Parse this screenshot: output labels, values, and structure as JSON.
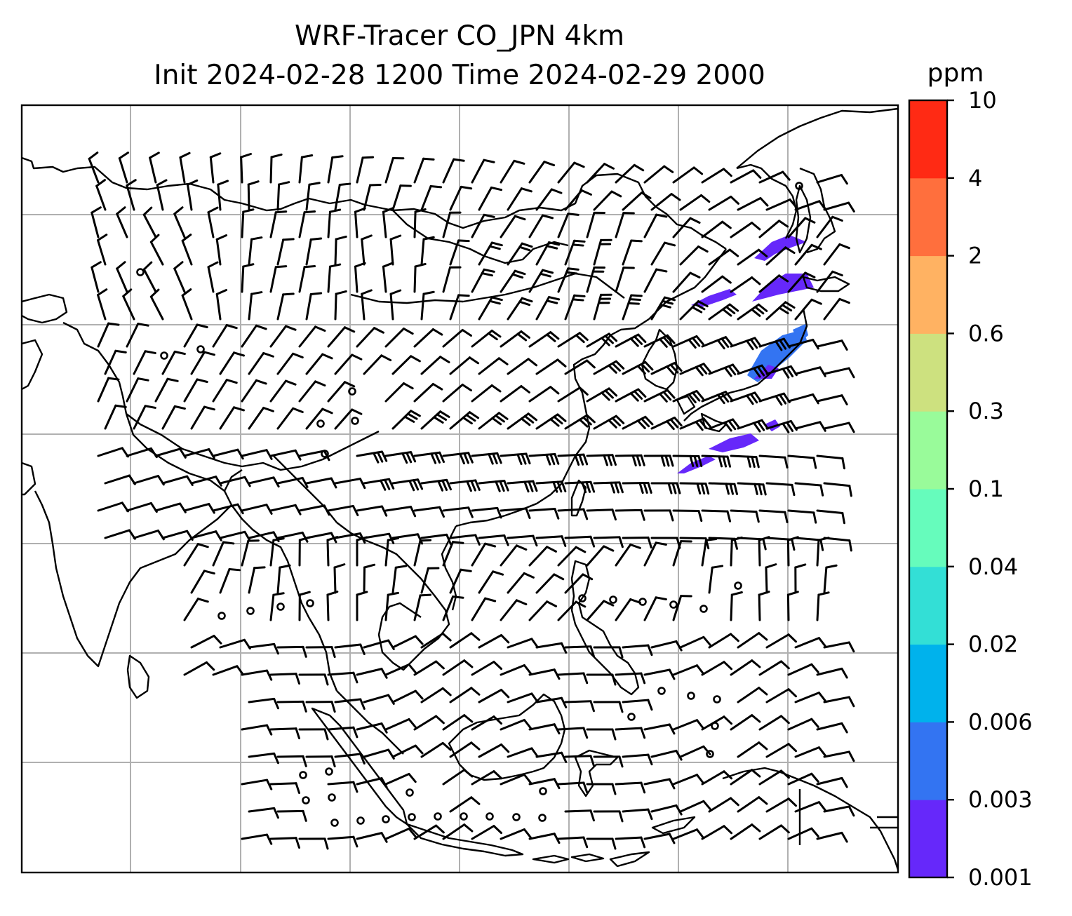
{
  "title": {
    "line1": "WRF-Tracer CO_JPN 4km",
    "line2": "Init 2024-02-28 1200 Time 2024-02-29 2000"
  },
  "colorbar": {
    "unit": "ppm",
    "ticks": [
      "0.001",
      "0.003",
      "0.006",
      "0.02",
      "0.04",
      "0.1",
      "0.3",
      "0.6",
      "2",
      "4",
      "10"
    ],
    "colors": [
      "#6628fa",
      "#3374f2",
      "#00b2ec",
      "#33dfd6",
      "#66fcbc",
      "#99fb9a",
      "#cde17f",
      "#ffb262",
      "#ff6f3d",
      "#ff2a14"
    ]
  },
  "map": {
    "grid": "on",
    "coastline_color": "#000000",
    "plume_colors": [
      "#6628fa",
      "#3374f2"
    ]
  }
}
